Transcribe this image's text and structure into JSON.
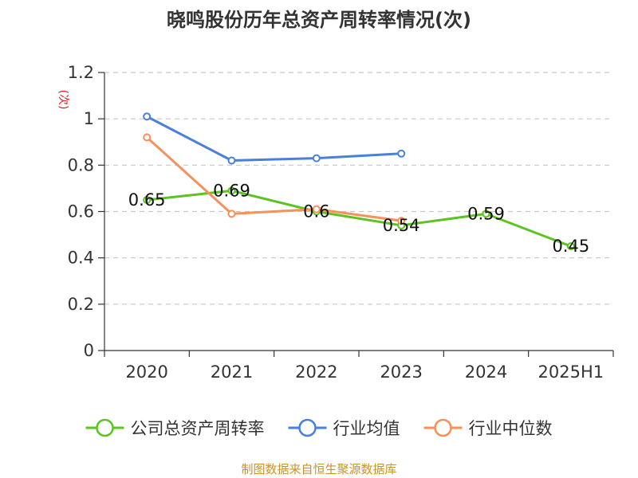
{
  "chart_data": {
    "type": "line",
    "title": "晓鸣股份历年总资产周转率情况(次)",
    "ylabel": "(次)",
    "categories": [
      "2020",
      "2021",
      "2022",
      "2023",
      "2024",
      "2025H1"
    ],
    "ylim": [
      0,
      1.2
    ],
    "yticks": [
      "0",
      "0.2",
      "0.4",
      "0.6",
      "0.8",
      "1",
      "1.2"
    ],
    "grid": true,
    "legend_position": "bottom",
    "series": [
      {
        "name": "公司总资产周转率",
        "color": "#5cc320",
        "show_labels": true,
        "values": [
          0.65,
          0.69,
          0.6,
          0.54,
          0.59,
          0.45
        ],
        "labels": [
          "0.65",
          "0.69",
          "0.6",
          "0.54",
          "0.59",
          "0.45"
        ]
      },
      {
        "name": "行业均值",
        "color": "#4a7fdc",
        "show_labels": false,
        "values": [
          1.01,
          0.82,
          0.83,
          0.85,
          null,
          null
        ]
      },
      {
        "name": "行业中位数",
        "color": "#f7905a",
        "show_labels": false,
        "values": [
          0.92,
          0.59,
          0.61,
          0.56,
          null,
          null
        ]
      }
    ]
  },
  "source": "制图数据来自恒生聚源数据库"
}
